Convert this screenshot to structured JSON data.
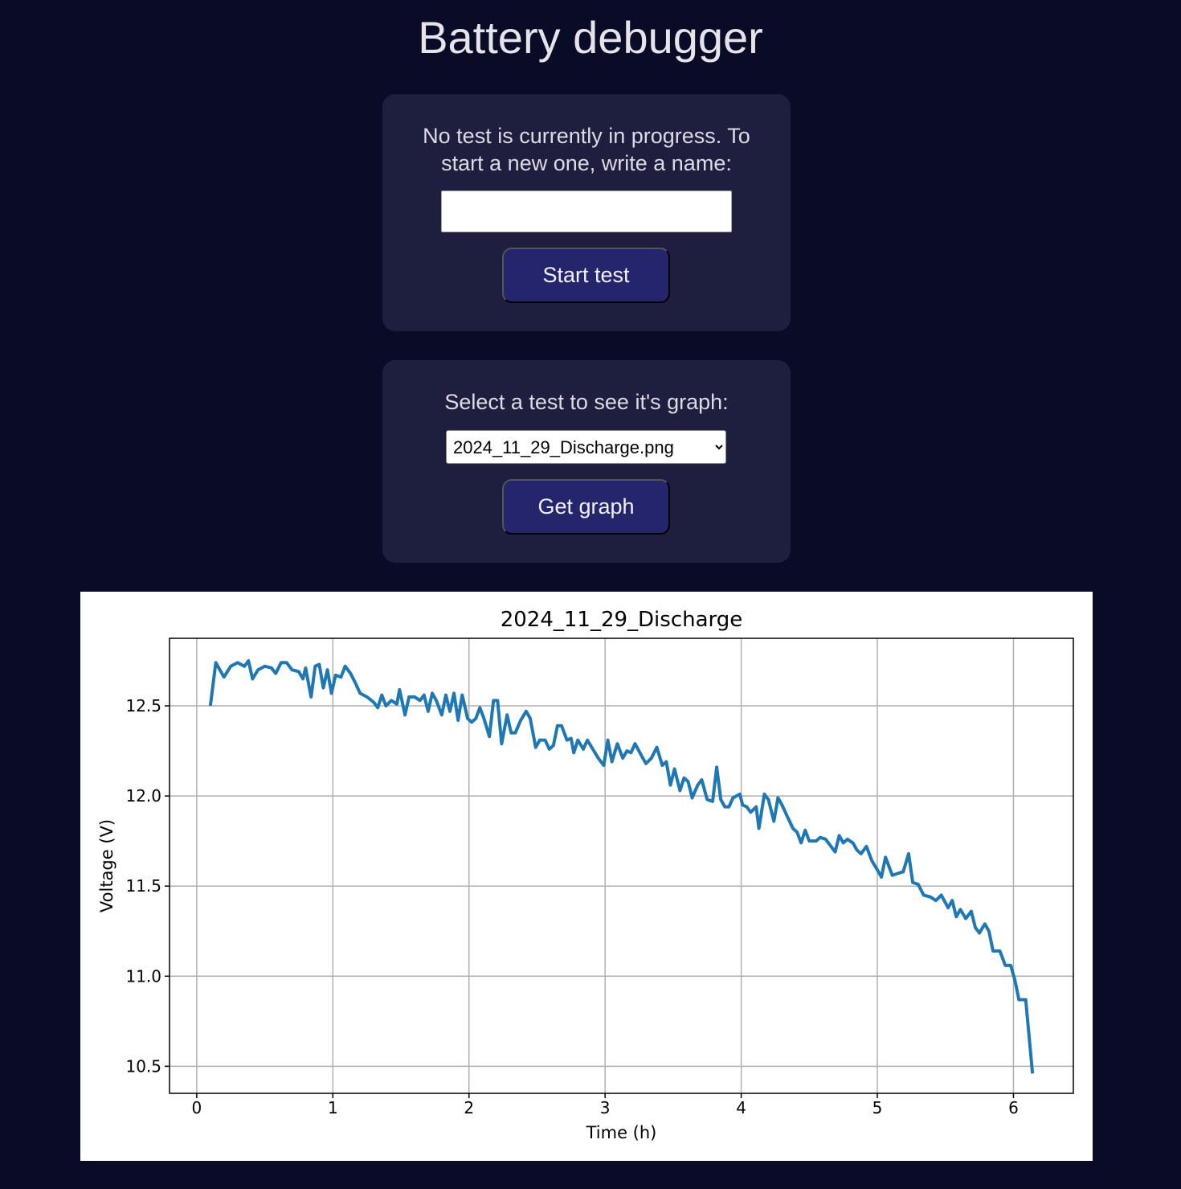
{
  "header": {
    "title": "Battery debugger"
  },
  "new_test": {
    "prompt": "No test is currently in progress. To start a new one, write a name:",
    "button": "Start test"
  },
  "graph_select": {
    "prompt": "Select a test to see it's graph:",
    "selected": "2024_11_29_Discharge.png",
    "button": "Get graph"
  },
  "chart_data": {
    "type": "line",
    "title": "2024_11_29_Discharge",
    "xlabel": "Time (h)",
    "ylabel": "Voltage (V)",
    "x": [
      0.1,
      0.14,
      0.2,
      0.25,
      0.3,
      0.35,
      0.38,
      0.41,
      0.45,
      0.5,
      0.55,
      0.58,
      0.62,
      0.66,
      0.7,
      0.75,
      0.78,
      0.8,
      0.84,
      0.87,
      0.9,
      0.93,
      0.96,
      0.99,
      1.02,
      1.06,
      1.09,
      1.13,
      1.17,
      1.2,
      1.25,
      1.3,
      1.33,
      1.36,
      1.39,
      1.43,
      1.47,
      1.49,
      1.53,
      1.56,
      1.6,
      1.64,
      1.67,
      1.7,
      1.73,
      1.76,
      1.8,
      1.83,
      1.86,
      1.89,
      1.92,
      1.95,
      1.99,
      2.02,
      2.05,
      2.08,
      2.11,
      2.15,
      2.18,
      2.21,
      2.24,
      2.28,
      2.31,
      2.34,
      2.38,
      2.42,
      2.45,
      2.49,
      2.52,
      2.56,
      2.59,
      2.62,
      2.65,
      2.68,
      2.72,
      2.75,
      2.77,
      2.8,
      2.84,
      2.87,
      2.91,
      2.95,
      2.99,
      3.02,
      3.05,
      3.09,
      3.13,
      3.16,
      3.19,
      3.22,
      3.27,
      3.3,
      3.34,
      3.38,
      3.42,
      3.45,
      3.48,
      3.51,
      3.55,
      3.58,
      3.61,
      3.64,
      3.68,
      3.71,
      3.75,
      3.79,
      3.82,
      3.85,
      3.88,
      3.91,
      3.94,
      3.99,
      4.01,
      4.04,
      4.07,
      4.11,
      4.13,
      4.17,
      4.2,
      4.24,
      4.27,
      4.3,
      4.33,
      4.38,
      4.41,
      4.44,
      4.47,
      4.5,
      4.55,
      4.58,
      4.62,
      4.65,
      4.69,
      4.72,
      4.75,
      4.78,
      4.82,
      4.85,
      4.88,
      4.92,
      4.96,
      5.0,
      5.03,
      5.06,
      5.11,
      5.15,
      5.19,
      5.23,
      5.26,
      5.3,
      5.34,
      5.39,
      5.43,
      5.47,
      5.52,
      5.55,
      5.58,
      5.61,
      5.65,
      5.69,
      5.72,
      5.75,
      5.79,
      5.82,
      5.85,
      5.9,
      5.94,
      5.98,
      6.01,
      6.04,
      6.09,
      6.14
    ],
    "series": [
      {
        "color": "#1f77b4",
        "values": [
          12.5,
          12.74,
          12.66,
          12.72,
          12.74,
          12.72,
          12.75,
          12.65,
          12.7,
          12.72,
          12.71,
          12.68,
          12.74,
          12.74,
          12.7,
          12.69,
          12.65,
          12.71,
          12.55,
          12.72,
          12.73,
          12.6,
          12.7,
          12.57,
          12.67,
          12.66,
          12.72,
          12.68,
          12.62,
          12.57,
          12.55,
          12.52,
          12.49,
          12.56,
          12.5,
          12.53,
          12.51,
          12.59,
          12.45,
          12.55,
          12.55,
          12.53,
          12.56,
          12.47,
          12.57,
          12.53,
          12.45,
          12.56,
          12.47,
          12.57,
          12.42,
          12.56,
          12.43,
          12.41,
          12.43,
          12.49,
          12.43,
          12.33,
          12.53,
          12.53,
          12.29,
          12.45,
          12.35,
          12.35,
          12.42,
          12.47,
          12.43,
          12.27,
          12.31,
          12.31,
          12.26,
          12.28,
          12.39,
          12.39,
          12.31,
          12.32,
          12.24,
          12.31,
          12.26,
          12.31,
          12.26,
          12.21,
          12.17,
          12.31,
          12.19,
          12.29,
          12.21,
          12.25,
          12.24,
          12.29,
          12.22,
          12.18,
          12.21,
          12.27,
          12.17,
          12.19,
          12.06,
          12.15,
          12.03,
          12.1,
          12.08,
          11.99,
          12.06,
          12.09,
          11.98,
          11.97,
          12.16,
          11.98,
          11.94,
          11.94,
          11.99,
          12.01,
          11.95,
          11.94,
          11.91,
          11.94,
          11.82,
          12.01,
          11.98,
          11.86,
          11.99,
          11.95,
          11.9,
          11.82,
          11.8,
          11.74,
          11.81,
          11.75,
          11.75,
          11.77,
          11.76,
          11.73,
          11.69,
          11.78,
          11.74,
          11.76,
          11.74,
          11.7,
          11.68,
          11.72,
          11.64,
          11.59,
          11.55,
          11.66,
          11.56,
          11.57,
          11.58,
          11.68,
          11.52,
          11.51,
          11.45,
          11.44,
          11.42,
          11.45,
          11.38,
          11.42,
          11.33,
          11.37,
          11.32,
          11.36,
          11.27,
          11.24,
          11.29,
          11.25,
          11.14,
          11.14,
          11.06,
          11.06,
          10.98,
          10.87,
          10.87,
          10.46
        ]
      }
    ],
    "xlim": [
      -0.2,
      6.44
    ],
    "ylim": [
      10.35,
      12.875
    ],
    "xticks": [
      0,
      1,
      2,
      3,
      4,
      5,
      6
    ],
    "yticks": [
      12.5,
      {
        "value": 12,
        "label": "12.0"
      },
      11.5,
      {
        "value": 11,
        "label": "11.0"
      },
      10.5
    ],
    "grid": true
  }
}
